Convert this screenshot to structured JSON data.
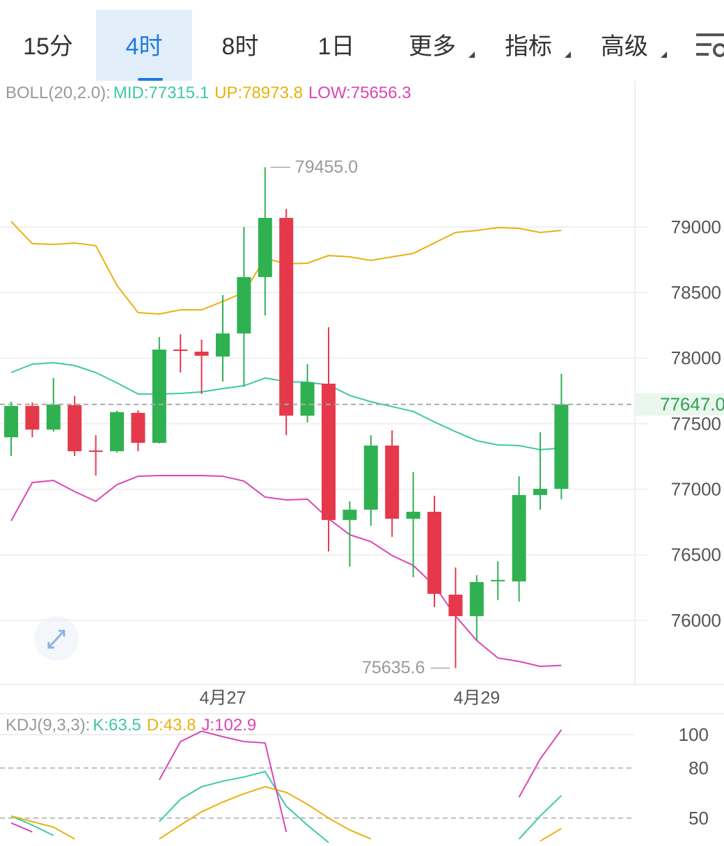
{
  "tabs": [
    {
      "label": "15分"
    },
    {
      "label": "4时"
    },
    {
      "label": "8时"
    },
    {
      "label": "1日"
    },
    {
      "label": "更多",
      "dropdown": true
    },
    {
      "label": "指标",
      "dropdown": true
    },
    {
      "label": "高级",
      "dropdown": true
    }
  ],
  "selected_tab": 1,
  "chart_data": [
    {
      "type": "candlestick",
      "indicator_label": "BOLL(20,2.0):",
      "categories": [
        null,
        null,
        null,
        null,
        null,
        null,
        null,
        null,
        null,
        null,
        "4月27",
        null,
        null,
        null,
        null,
        null,
        null,
        null,
        null,
        null,
        null,
        null,
        "4月29",
        null,
        null,
        null,
        null
      ],
      "open": [
        77396,
        77635,
        77455,
        77641,
        77290,
        77290,
        77582,
        77354,
        78060,
        78049,
        78012,
        78188,
        78618,
        79069,
        77561,
        77805,
        76765,
        76844,
        77333,
        76775,
        76828,
        76196,
        76032,
        76298,
        76297,
        76956,
        77003
      ],
      "high": [
        77667,
        77662,
        77848,
        77710,
        77412,
        77598,
        77603,
        78161,
        78182,
        78140,
        78480,
        79000,
        79455,
        79138,
        77954,
        78235,
        76908,
        77412,
        77449,
        77131,
        76950,
        76403,
        76345,
        76451,
        77099,
        77434,
        77880
      ],
      "low": [
        77253,
        77396,
        77439,
        77253,
        77104,
        77280,
        77290,
        77349,
        77890,
        77726,
        77821,
        77784,
        78326,
        77412,
        77508,
        76525,
        76409,
        76722,
        76637,
        76329,
        76101,
        75635.6,
        75846,
        76154,
        76143,
        76844,
        76924
      ],
      "close": [
        77635,
        77455,
        77646,
        77290,
        77280,
        77588,
        77354,
        78065,
        78055,
        78018,
        78188,
        78618,
        79069,
        77561,
        77816,
        76765,
        76844,
        77333,
        76775,
        76828,
        76202,
        76032,
        76292,
        76303,
        76956,
        77003,
        77647
      ],
      "up_color": "#2fb152",
      "down_color": "#e5394b",
      "series": [
        {
          "name": "MID:77315.1",
          "color": "#3cc8a8",
          "values": [
            77890,
            77954,
            77965,
            77943,
            77890,
            77811,
            77726,
            77726,
            77731,
            77742,
            77768,
            77789,
            77848,
            77821,
            77816,
            77795,
            77715,
            77667,
            77630,
            77593,
            77513,
            77439,
            77370,
            77338,
            77333,
            77301,
            77315.1
          ]
        },
        {
          "name": "UP:78973.8",
          "color": "#e8b10e",
          "values": [
            79042,
            78873,
            78867,
            78878,
            78857,
            78554,
            78347,
            78336,
            78368,
            78368,
            78432,
            78501,
            78761,
            78719,
            78724,
            78782,
            78772,
            78745,
            78772,
            78798,
            78878,
            78958,
            78973,
            78995,
            78989,
            78958,
            78973.8
          ]
        },
        {
          "name": "LOW:75656.3",
          "color": "#d946b4",
          "values": [
            76759,
            77051,
            77067,
            76982,
            76908,
            77035,
            77099,
            77104,
            77104,
            77104,
            77099,
            77062,
            76940,
            76918,
            76924,
            76775,
            76653,
            76600,
            76494,
            76419,
            76265,
            76032,
            75846,
            75713,
            75687,
            75649,
            75656.3
          ]
        }
      ],
      "ylim": [
        75511,
        80115
      ],
      "yticks": [
        76000,
        76500,
        77000,
        77500,
        78000,
        78500,
        79000
      ],
      "current_price": {
        "value": 77647,
        "label": "77647.0"
      },
      "annotations": [
        {
          "index": 12,
          "value": 79455,
          "label": "79455.0"
        },
        {
          "index": 21,
          "value": 75635.6,
          "label": "75635.6"
        }
      ],
      "grid": true
    },
    {
      "type": "line",
      "indicator_label": "KDJ(9,3,3):",
      "series": [
        {
          "name": "K:63.5",
          "color": "#3cc8a8",
          "values": [
            51.25,
            45.8,
            39.6,
            null,
            null,
            null,
            null,
            47.9,
            61.25,
            68.75,
            72.1,
            74.6,
            77.9,
            57.1,
            45.8,
            35.4,
            null,
            null,
            null,
            null,
            null,
            null,
            null,
            null,
            37.5,
            51.25,
            63.5
          ]
        },
        {
          "name": "D:43.8",
          "color": "#e8b10e",
          "values": [
            51.25,
            47.9,
            44.6,
            37.5,
            null,
            null,
            null,
            37.5,
            45.8,
            53.75,
            59.6,
            64.6,
            68.75,
            65.4,
            58.3,
            50,
            42.9,
            37.5,
            null,
            null,
            null,
            null,
            null,
            null,
            null,
            36.25,
            43.8
          ]
        },
        {
          "name": "J:102.9",
          "color": "#d946b4",
          "values": [
            47.1,
            41.7,
            null,
            null,
            null,
            null,
            null,
            72.9,
            95.8,
            102,
            98.75,
            95.8,
            95,
            41.7,
            null,
            null,
            null,
            null,
            null,
            null,
            null,
            null,
            null,
            null,
            62.5,
            85.4,
            102.9
          ]
        }
      ],
      "ylim": [
        33.3,
        112.5
      ],
      "yticks": [
        50,
        80,
        100
      ],
      "dashed_ticks": [
        50,
        80
      ]
    }
  ]
}
